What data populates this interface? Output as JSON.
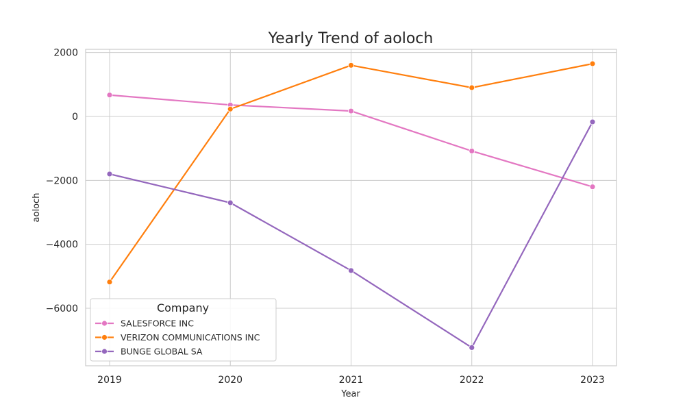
{
  "chart_data": {
    "type": "line",
    "title": "Yearly Trend of aoloch",
    "xlabel": "Year",
    "ylabel": "aoloch",
    "x": [
      "2019",
      "2020",
      "2021",
      "2022",
      "2023"
    ],
    "ylim": [
      -7800,
      2100
    ],
    "yticks": [
      2000,
      0,
      -2000,
      -4000,
      -6000
    ],
    "ytick_labels": [
      "2000",
      "0",
      "−2000",
      "−4000",
      "−6000"
    ],
    "grid": true,
    "legend": {
      "title": "Company",
      "placement": "lower-left"
    },
    "series": [
      {
        "name": "SALESFORCE INC",
        "color": "#e377c2",
        "values": [
          670,
          360,
          170,
          -1080,
          -2200
        ]
      },
      {
        "name": "VERIZON COMMUNICATIONS INC",
        "color": "#ff7f0e",
        "values": [
          -5180,
          230,
          1600,
          900,
          1650
        ]
      },
      {
        "name": "BUNGE GLOBAL SA",
        "color": "#9467bd",
        "values": [
          -1800,
          -2700,
          -4820,
          -7230,
          -170
        ]
      }
    ]
  }
}
